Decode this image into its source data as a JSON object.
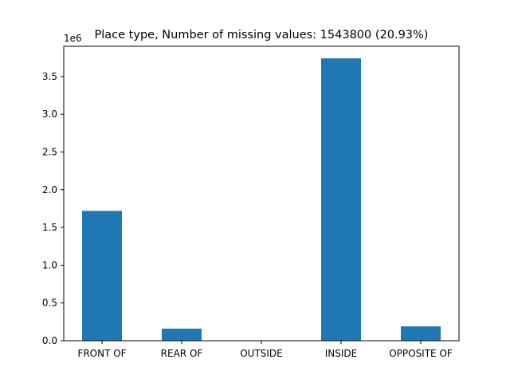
{
  "chart_data": {
    "type": "bar",
    "title": "Place type,  Number of missing values: 1543800 (20.93%)",
    "offset_label": "1e6",
    "xlabel": "",
    "ylabel": "",
    "categories": [
      "FRONT OF",
      "REAR OF",
      "OUTSIDE",
      "INSIDE",
      "OPPOSITE OF"
    ],
    "values": [
      1.72,
      0.16,
      0.0,
      3.74,
      0.19
    ],
    "value_scale": 1000000,
    "ylim": [
      0,
      3.9
    ],
    "yticks": [
      {
        "value": 0.0,
        "label": "0.0"
      },
      {
        "value": 0.5,
        "label": "0.5"
      },
      {
        "value": 1.0,
        "label": "1.0"
      },
      {
        "value": 1.5,
        "label": "1.5"
      },
      {
        "value": 2.0,
        "label": "2.0"
      },
      {
        "value": 2.5,
        "label": "2.5"
      },
      {
        "value": 3.0,
        "label": "3.0"
      },
      {
        "value": 3.5,
        "label": "3.5"
      }
    ],
    "bar_color": "#1f77b4",
    "grid": false,
    "legend": "none"
  }
}
